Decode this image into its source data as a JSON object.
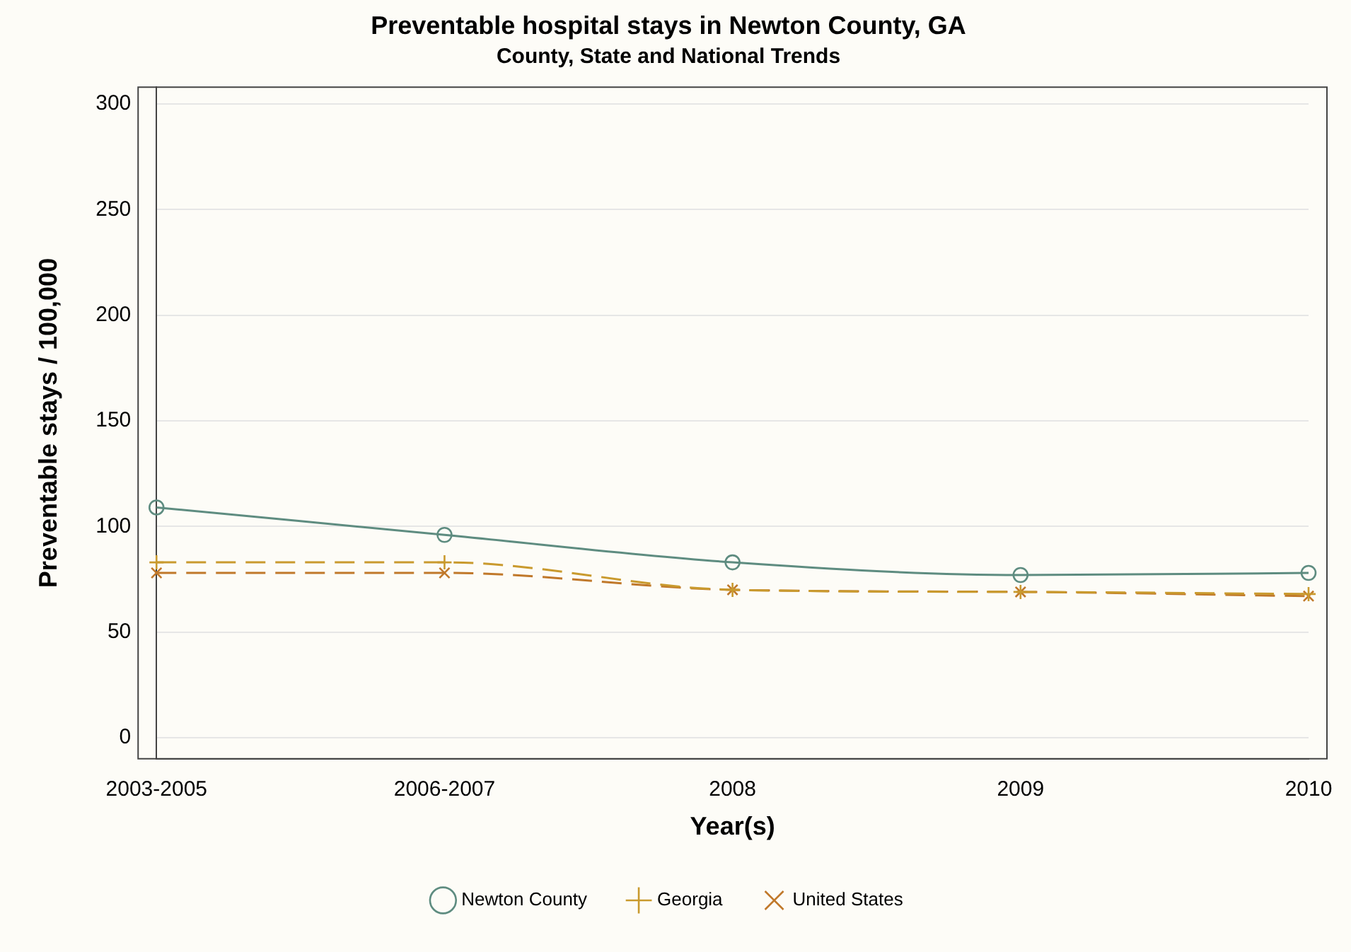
{
  "chart_data": {
    "type": "line",
    "title": "Preventable hospital stays in Newton County, GA",
    "subtitle": "County, State and National Trends",
    "xlabel": "Year(s)",
    "ylabel": "Preventable stays / 100,000",
    "categories": [
      "2003-2005",
      "2006-2007",
      "2008",
      "2009",
      "2010"
    ],
    "series": [
      {
        "name": "Newton County",
        "color": "#5e8c80",
        "values": [
          109,
          96,
          83,
          77,
          78
        ],
        "marker": "circle",
        "line_style": "solid"
      },
      {
        "name": "Georgia",
        "color": "#c99a2e",
        "values": [
          83,
          83,
          70,
          69,
          68
        ],
        "marker": "cross",
        "line_style": "dashed"
      },
      {
        "name": "United States",
        "color": "#c0782a",
        "values": [
          78,
          78,
          70,
          69,
          67
        ],
        "marker": "crossRot",
        "line_style": "dashed"
      }
    ],
    "ylim": [
      -10,
      308
    ],
    "yticks": [
      0,
      50,
      100,
      150,
      200,
      250,
      300
    ],
    "grid": "y",
    "legend": "bottom"
  }
}
